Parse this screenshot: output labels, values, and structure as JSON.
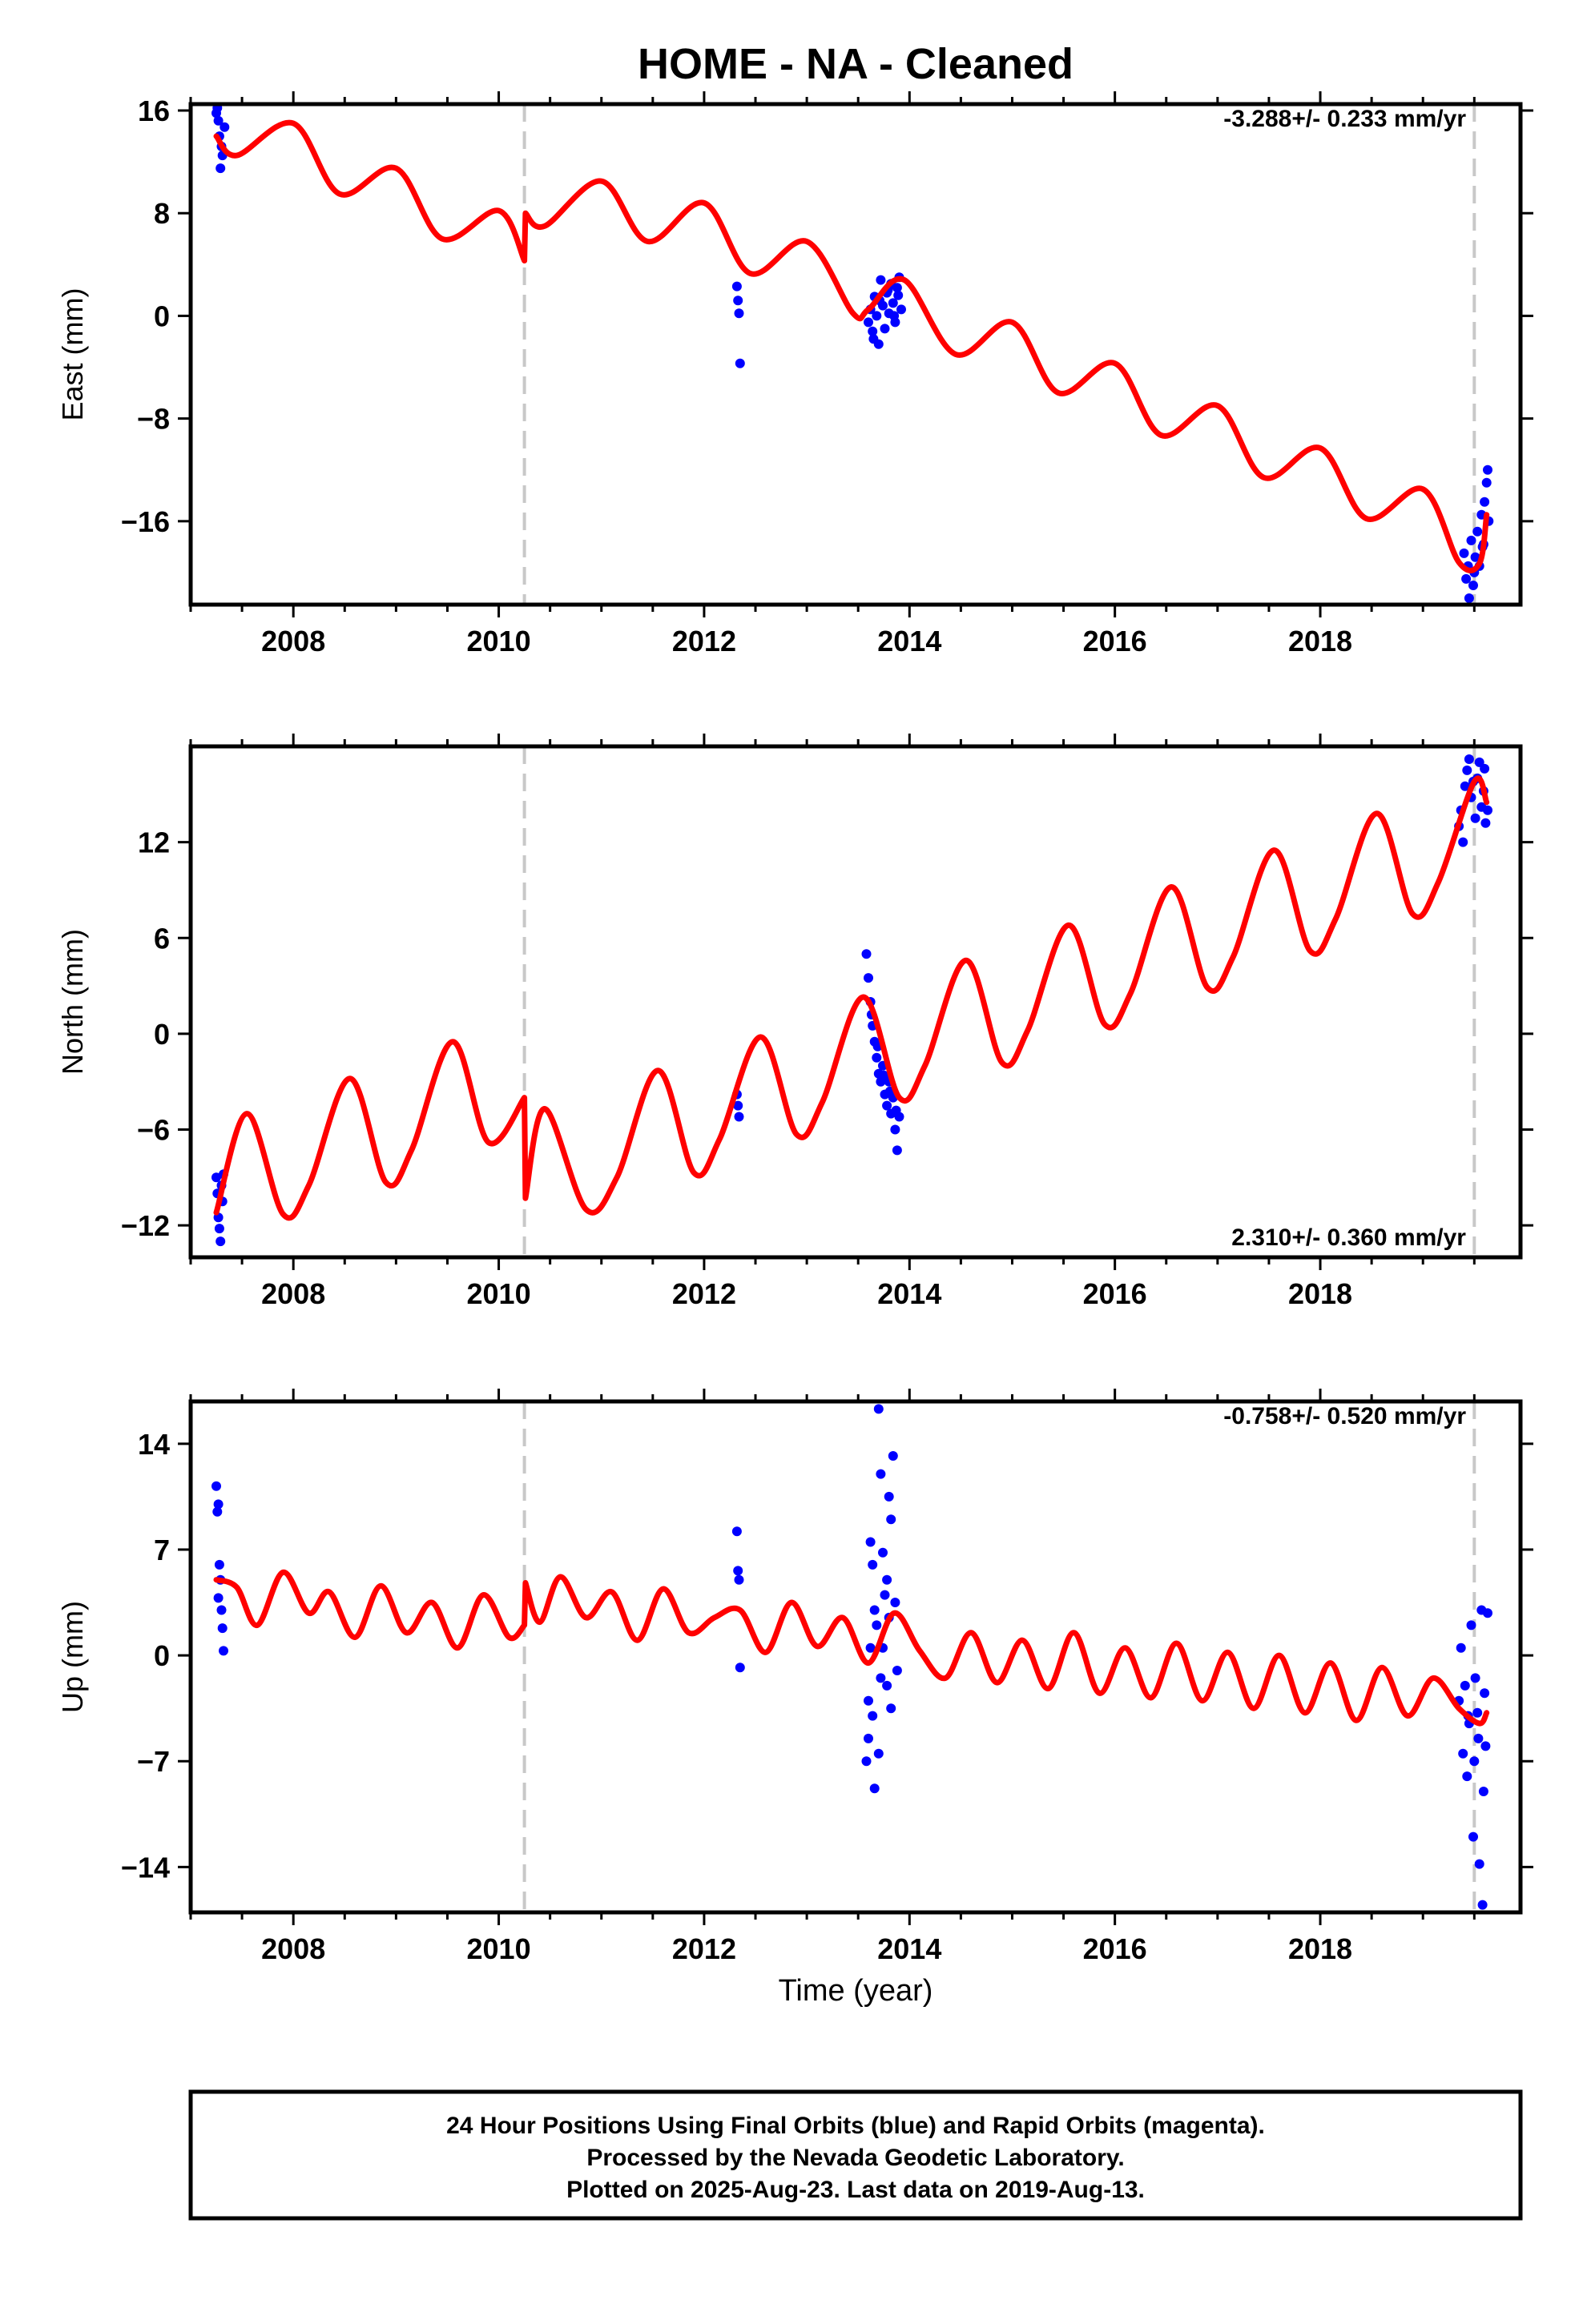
{
  "title": "HOME  - NA - Cleaned",
  "xlabel": "Time (year)",
  "footer": {
    "lines": [
      "24 Hour Positions Using Final Orbits (blue) and Rapid Orbits (magenta).",
      "Processed by the Nevada Geodetic Laboratory.",
      "Plotted on 2025-Aug-23. Last data on 2019-Aug-13."
    ]
  },
  "colors": {
    "data_points": "#0000ff",
    "model_line": "#ff0000",
    "event_lines": "#c8c8c8",
    "frame": "#000000"
  },
  "chart_data": [
    {
      "type": "scatter",
      "name": "east",
      "ylabel": "East (mm)",
      "rate_label": "-3.288+/- 0.233 mm/yr",
      "xlim": [
        2007.0,
        2019.95
      ],
      "ylim": [
        -22.5,
        16.5
      ],
      "x_ticks": [
        2008,
        2010,
        2012,
        2014,
        2016,
        2018
      ],
      "x_tick_labels": [
        "2008",
        "2010",
        "2012",
        "2014",
        "2016",
        "2018"
      ],
      "y_ticks": [
        16,
        8,
        0,
        -8,
        -16
      ],
      "y_tick_labels": [
        "16",
        "8",
        "0",
        "−8",
        "−16"
      ],
      "event_lines_x": [
        2010.25,
        2019.5
      ],
      "model": {
        "description_type": "line",
        "knots_x": [
          2007.25,
          2007.45,
          2008.0,
          2008.45,
          2009.0,
          2009.45,
          2010.0,
          2010.25,
          2010.26,
          2010.45,
          2011.0,
          2011.45,
          2012.0,
          2012.45,
          2013.0,
          2013.45,
          2013.6,
          2013.95,
          2014.45,
          2015.0,
          2015.45,
          2016.0,
          2016.45,
          2017.0,
          2017.45,
          2018.0,
          2018.45,
          2019.0,
          2019.35,
          2019.55,
          2019.62
        ],
        "knots_y": [
          14.0,
          12.5,
          15.0,
          9.5,
          11.5,
          6.0,
          8.2,
          4.3,
          8.0,
          7.0,
          10.5,
          5.8,
          8.8,
          3.3,
          5.8,
          0.2,
          0.5,
          2.8,
          -3.0,
          -0.5,
          -6.0,
          -3.7,
          -9.3,
          -7.0,
          -12.6,
          -10.3,
          -15.8,
          -13.5,
          -19.2,
          -19.3,
          -15.5
        ]
      },
      "points": [
        [
          2007.25,
          15.8
        ],
        [
          2007.27,
          15.2
        ],
        [
          2007.28,
          14.0
        ],
        [
          2007.3,
          13.2
        ],
        [
          2007.31,
          12.5
        ],
        [
          2007.29,
          11.5
        ],
        [
          2007.33,
          14.7
        ],
        [
          2007.26,
          16.2
        ],
        [
          2012.32,
          2.3
        ],
        [
          2012.33,
          1.2
        ],
        [
          2012.34,
          0.2
        ],
        [
          2012.35,
          -3.7
        ],
        [
          2013.6,
          -0.5
        ],
        [
          2013.62,
          0.5
        ],
        [
          2013.64,
          -1.2
        ],
        [
          2013.66,
          1.5
        ],
        [
          2013.68,
          0.0
        ],
        [
          2013.7,
          -2.2
        ],
        [
          2013.72,
          2.8
        ],
        [
          2013.74,
          0.8
        ],
        [
          2013.76,
          -1.0
        ],
        [
          2013.78,
          1.8
        ],
        [
          2013.8,
          0.2
        ],
        [
          2013.82,
          2.5
        ],
        [
          2013.84,
          1.0
        ],
        [
          2013.86,
          -0.5
        ],
        [
          2013.88,
          2.2
        ],
        [
          2013.9,
          3.0
        ],
        [
          2013.92,
          0.5
        ],
        [
          2013.65,
          -1.8
        ],
        [
          2013.71,
          1.2
        ],
        [
          2013.79,
          2.0
        ],
        [
          2013.85,
          0.0
        ],
        [
          2013.89,
          1.6
        ],
        [
          2019.4,
          -18.5
        ],
        [
          2019.42,
          -20.5
        ],
        [
          2019.44,
          -19.5
        ],
        [
          2019.45,
          -22.0
        ],
        [
          2019.47,
          -17.5
        ],
        [
          2019.49,
          -21.0
        ],
        [
          2019.51,
          -18.8
        ],
        [
          2019.53,
          -16.8
        ],
        [
          2019.55,
          -19.5
        ],
        [
          2019.57,
          -15.5
        ],
        [
          2019.59,
          -17.8
        ],
        [
          2019.6,
          -14.5
        ],
        [
          2019.62,
          -13.0
        ],
        [
          2019.63,
          -12.0
        ],
        [
          2019.64,
          -16.0
        ],
        [
          2019.58,
          -18.0
        ],
        [
          2019.5,
          -20.0
        ]
      ]
    },
    {
      "type": "scatter",
      "name": "north",
      "ylabel": "North (mm)",
      "rate_label": "2.310+/- 0.360 mm/yr",
      "xlim": [
        2007.0,
        2019.95
      ],
      "ylim": [
        -14.0,
        18.0
      ],
      "x_ticks": [
        2008,
        2010,
        2012,
        2014,
        2016,
        2018
      ],
      "x_tick_labels": [
        "2008",
        "2010",
        "2012",
        "2014",
        "2016",
        "2018"
      ],
      "y_ticks": [
        12,
        6,
        0,
        -6,
        -12
      ],
      "y_tick_labels": [
        "12",
        "6",
        "0",
        "−6",
        "−12"
      ],
      "event_lines_x": [
        2010.25,
        2019.5
      ],
      "model": {
        "description_type": "line",
        "knots_x": [
          2007.25,
          2007.55,
          2007.9,
          2008.15,
          2008.55,
          2008.9,
          2009.15,
          2009.55,
          2009.9,
          2010.25,
          2010.26,
          2010.45,
          2010.85,
          2011.15,
          2011.55,
          2011.9,
          2012.15,
          2012.55,
          2012.9,
          2013.15,
          2013.55,
          2013.9,
          2014.15,
          2014.55,
          2014.9,
          2015.15,
          2015.55,
          2015.9,
          2016.15,
          2016.55,
          2016.9,
          2017.15,
          2017.55,
          2017.9,
          2018.15,
          2018.55,
          2018.9,
          2019.15,
          2019.5,
          2019.62
        ],
        "knots_y": [
          -11.2,
          -5.0,
          -11.3,
          -9.5,
          -2.8,
          -9.3,
          -7.3,
          -0.5,
          -6.8,
          -4.0,
          -10.3,
          -4.7,
          -11.0,
          -9.0,
          -2.3,
          -8.7,
          -6.6,
          -0.2,
          -6.3,
          -4.3,
          2.3,
          -4.0,
          -2.0,
          4.6,
          -1.8,
          0.2,
          6.8,
          0.6,
          2.5,
          9.2,
          2.9,
          4.8,
          11.5,
          5.2,
          7.2,
          13.8,
          7.5,
          9.5,
          15.8,
          14.5
        ]
      },
      "points": [
        [
          2007.25,
          -9.0
        ],
        [
          2007.26,
          -10.0
        ],
        [
          2007.27,
          -11.5
        ],
        [
          2007.28,
          -12.2
        ],
        [
          2007.29,
          -13.0
        ],
        [
          2007.3,
          -9.5
        ],
        [
          2007.31,
          -10.5
        ],
        [
          2007.32,
          -8.8
        ],
        [
          2012.32,
          -3.8
        ],
        [
          2012.33,
          -4.5
        ],
        [
          2012.34,
          -5.2
        ],
        [
          2013.58,
          5.0
        ],
        [
          2013.6,
          3.5
        ],
        [
          2013.62,
          2.0
        ],
        [
          2013.64,
          0.5
        ],
        [
          2013.66,
          -0.5
        ],
        [
          2013.68,
          -1.5
        ],
        [
          2013.7,
          -2.5
        ],
        [
          2013.72,
          -3.0
        ],
        [
          2013.74,
          -2.0
        ],
        [
          2013.76,
          -3.8
        ],
        [
          2013.78,
          -4.5
        ],
        [
          2013.8,
          -3.0
        ],
        [
          2013.82,
          -5.0
        ],
        [
          2013.84,
          -4.0
        ],
        [
          2013.86,
          -6.0
        ],
        [
          2013.88,
          -7.3
        ],
        [
          2013.9,
          -5.2
        ],
        [
          2013.63,
          1.2
        ],
        [
          2013.69,
          -0.8
        ],
        [
          2013.75,
          -2.6
        ],
        [
          2013.81,
          -3.6
        ],
        [
          2013.87,
          -4.8
        ],
        [
          2019.35,
          13.0
        ],
        [
          2019.37,
          14.0
        ],
        [
          2019.39,
          12.0
        ],
        [
          2019.41,
          15.5
        ],
        [
          2019.43,
          16.5
        ],
        [
          2019.45,
          17.2
        ],
        [
          2019.47,
          14.8
        ],
        [
          2019.49,
          15.8
        ],
        [
          2019.51,
          13.5
        ],
        [
          2019.53,
          16.0
        ],
        [
          2019.55,
          17.0
        ],
        [
          2019.57,
          14.2
        ],
        [
          2019.59,
          15.2
        ],
        [
          2019.61,
          13.2
        ],
        [
          2019.63,
          14.0
        ],
        [
          2019.6,
          16.6
        ]
      ]
    },
    {
      "type": "scatter",
      "name": "up",
      "ylabel": "Up (mm)",
      "rate_label": "-0.758+/- 0.520 mm/yr",
      "xlim": [
        2007.0,
        2019.95
      ],
      "ylim": [
        -17.0,
        16.8
      ],
      "x_ticks": [
        2008,
        2010,
        2012,
        2014,
        2016,
        2018
      ],
      "x_tick_labels": [
        "2008",
        "2010",
        "2012",
        "2014",
        "2016",
        "2018"
      ],
      "y_ticks": [
        14,
        7,
        0,
        -7,
        -14
      ],
      "y_tick_labels": [
        "14",
        "7",
        "0",
        "−7",
        "−14"
      ],
      "event_lines_x": [
        2010.25,
        2019.5
      ],
      "model": {
        "description_type": "line",
        "knots_x": [
          2007.25,
          2007.45,
          2007.65,
          2007.9,
          2008.15,
          2008.35,
          2008.6,
          2008.85,
          2009.1,
          2009.35,
          2009.6,
          2009.85,
          2010.1,
          2010.25,
          2010.26,
          2010.4,
          2010.6,
          2010.85,
          2011.1,
          2011.35,
          2011.6,
          2011.85,
          2012.1,
          2012.35,
          2012.6,
          2012.85,
          2013.1,
          2013.35,
          2013.6,
          2013.85,
          2014.1,
          2014.35,
          2014.6,
          2014.85,
          2015.1,
          2015.35,
          2015.6,
          2015.85,
          2016.1,
          2016.35,
          2016.6,
          2016.85,
          2017.1,
          2017.35,
          2017.6,
          2017.85,
          2018.1,
          2018.35,
          2018.6,
          2018.85,
          2019.1,
          2019.35,
          2019.55,
          2019.62
        ],
        "knots_y": [
          5.0,
          4.5,
          2.0,
          5.5,
          2.8,
          4.2,
          1.2,
          4.6,
          1.5,
          3.5,
          0.5,
          4.0,
          1.2,
          2.0,
          4.8,
          2.2,
          5.2,
          2.5,
          4.2,
          1.0,
          4.4,
          1.5,
          2.5,
          3.0,
          0.2,
          3.5,
          0.6,
          2.5,
          -0.5,
          2.8,
          0.3,
          -1.5,
          1.5,
          -1.8,
          1.0,
          -2.2,
          1.5,
          -2.5,
          0.5,
          -2.8,
          0.8,
          -3.0,
          0.2,
          -3.5,
          0.0,
          -3.8,
          -0.5,
          -4.3,
          -0.8,
          -4.0,
          -1.5,
          -3.5,
          -4.5,
          -3.8
        ]
      },
      "points": [
        [
          2007.25,
          11.2
        ],
        [
          2007.26,
          9.5
        ],
        [
          2007.27,
          10.0
        ],
        [
          2007.28,
          6.0
        ],
        [
          2007.29,
          5.0
        ],
        [
          2007.3,
          3.0
        ],
        [
          2007.31,
          1.8
        ],
        [
          2007.32,
          0.3
        ],
        [
          2007.27,
          3.8
        ],
        [
          2012.32,
          8.2
        ],
        [
          2012.33,
          5.6
        ],
        [
          2012.34,
          5.0
        ],
        [
          2012.35,
          -0.8
        ],
        [
          2013.58,
          -7.0
        ],
        [
          2013.6,
          -3.0
        ],
        [
          2013.62,
          7.5
        ],
        [
          2013.64,
          6.0
        ],
        [
          2013.66,
          -8.8
        ],
        [
          2013.68,
          2.0
        ],
        [
          2013.7,
          16.3
        ],
        [
          2013.72,
          12.0
        ],
        [
          2013.74,
          0.5
        ],
        [
          2013.76,
          4.0
        ],
        [
          2013.78,
          -2.0
        ],
        [
          2013.8,
          10.5
        ],
        [
          2013.82,
          9.0
        ],
        [
          2013.84,
          13.2
        ],
        [
          2013.86,
          3.5
        ],
        [
          2013.88,
          -1.0
        ],
        [
          2013.6,
          -5.5
        ],
        [
          2013.64,
          -4.0
        ],
        [
          2013.66,
          3.0
        ],
        [
          2013.7,
          -6.5
        ],
        [
          2013.74,
          6.8
        ],
        [
          2013.78,
          5.0
        ],
        [
          2013.82,
          -3.5
        ],
        [
          2013.62,
          0.5
        ],
        [
          2013.72,
          -1.5
        ],
        [
          2013.8,
          2.5
        ],
        [
          2019.35,
          -3.0
        ],
        [
          2019.37,
          0.5
        ],
        [
          2019.39,
          -6.5
        ],
        [
          2019.41,
          -2.0
        ],
        [
          2019.43,
          -8.0
        ],
        [
          2019.45,
          -4.5
        ],
        [
          2019.47,
          2.0
        ],
        [
          2019.49,
          -12.0
        ],
        [
          2019.51,
          -1.5
        ],
        [
          2019.53,
          -3.8
        ],
        [
          2019.55,
          -13.8
        ],
        [
          2019.57,
          3.0
        ],
        [
          2019.58,
          -16.5
        ],
        [
          2019.59,
          -9.0
        ],
        [
          2019.61,
          -6.0
        ],
        [
          2019.63,
          2.8
        ],
        [
          2019.5,
          -7.0
        ],
        [
          2019.54,
          -5.5
        ],
        [
          2019.6,
          -2.5
        ],
        [
          2019.44,
          -4.0
        ]
      ]
    }
  ]
}
